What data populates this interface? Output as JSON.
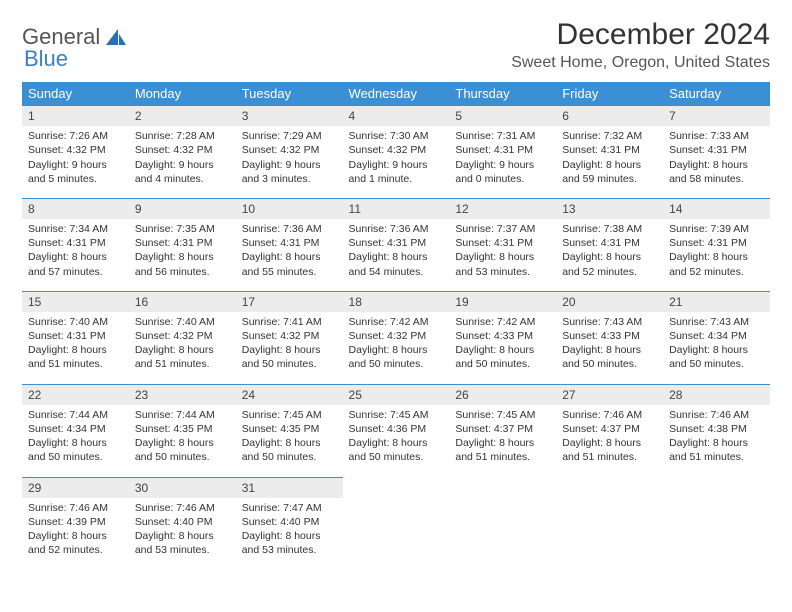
{
  "logo": {
    "text_a": "General",
    "text_b": "Blue"
  },
  "title": "December 2024",
  "location": "Sweet Home, Oregon, United States",
  "colors": {
    "header_bg": "#3b8fd4",
    "header_text": "#ffffff",
    "daynum_bg": "#ececec",
    "daynum_border": "#3b8fd4",
    "body_text": "#333333",
    "background": "#ffffff"
  },
  "day_headers": [
    "Sunday",
    "Monday",
    "Tuesday",
    "Wednesday",
    "Thursday",
    "Friday",
    "Saturday"
  ],
  "weeks": [
    [
      {
        "n": "1",
        "sr": "Sunrise: 7:26 AM",
        "ss": "Sunset: 4:32 PM",
        "d1": "Daylight: 9 hours",
        "d2": "and 5 minutes."
      },
      {
        "n": "2",
        "sr": "Sunrise: 7:28 AM",
        "ss": "Sunset: 4:32 PM",
        "d1": "Daylight: 9 hours",
        "d2": "and 4 minutes."
      },
      {
        "n": "3",
        "sr": "Sunrise: 7:29 AM",
        "ss": "Sunset: 4:32 PM",
        "d1": "Daylight: 9 hours",
        "d2": "and 3 minutes."
      },
      {
        "n": "4",
        "sr": "Sunrise: 7:30 AM",
        "ss": "Sunset: 4:32 PM",
        "d1": "Daylight: 9 hours",
        "d2": "and 1 minute."
      },
      {
        "n": "5",
        "sr": "Sunrise: 7:31 AM",
        "ss": "Sunset: 4:31 PM",
        "d1": "Daylight: 9 hours",
        "d2": "and 0 minutes."
      },
      {
        "n": "6",
        "sr": "Sunrise: 7:32 AM",
        "ss": "Sunset: 4:31 PM",
        "d1": "Daylight: 8 hours",
        "d2": "and 59 minutes."
      },
      {
        "n": "7",
        "sr": "Sunrise: 7:33 AM",
        "ss": "Sunset: 4:31 PM",
        "d1": "Daylight: 8 hours",
        "d2": "and 58 minutes."
      }
    ],
    [
      {
        "n": "8",
        "sr": "Sunrise: 7:34 AM",
        "ss": "Sunset: 4:31 PM",
        "d1": "Daylight: 8 hours",
        "d2": "and 57 minutes."
      },
      {
        "n": "9",
        "sr": "Sunrise: 7:35 AM",
        "ss": "Sunset: 4:31 PM",
        "d1": "Daylight: 8 hours",
        "d2": "and 56 minutes."
      },
      {
        "n": "10",
        "sr": "Sunrise: 7:36 AM",
        "ss": "Sunset: 4:31 PM",
        "d1": "Daylight: 8 hours",
        "d2": "and 55 minutes."
      },
      {
        "n": "11",
        "sr": "Sunrise: 7:36 AM",
        "ss": "Sunset: 4:31 PM",
        "d1": "Daylight: 8 hours",
        "d2": "and 54 minutes."
      },
      {
        "n": "12",
        "sr": "Sunrise: 7:37 AM",
        "ss": "Sunset: 4:31 PM",
        "d1": "Daylight: 8 hours",
        "d2": "and 53 minutes."
      },
      {
        "n": "13",
        "sr": "Sunrise: 7:38 AM",
        "ss": "Sunset: 4:31 PM",
        "d1": "Daylight: 8 hours",
        "d2": "and 52 minutes."
      },
      {
        "n": "14",
        "sr": "Sunrise: 7:39 AM",
        "ss": "Sunset: 4:31 PM",
        "d1": "Daylight: 8 hours",
        "d2": "and 52 minutes."
      }
    ],
    [
      {
        "n": "15",
        "sr": "Sunrise: 7:40 AM",
        "ss": "Sunset: 4:31 PM",
        "d1": "Daylight: 8 hours",
        "d2": "and 51 minutes."
      },
      {
        "n": "16",
        "sr": "Sunrise: 7:40 AM",
        "ss": "Sunset: 4:32 PM",
        "d1": "Daylight: 8 hours",
        "d2": "and 51 minutes."
      },
      {
        "n": "17",
        "sr": "Sunrise: 7:41 AM",
        "ss": "Sunset: 4:32 PM",
        "d1": "Daylight: 8 hours",
        "d2": "and 50 minutes."
      },
      {
        "n": "18",
        "sr": "Sunrise: 7:42 AM",
        "ss": "Sunset: 4:32 PM",
        "d1": "Daylight: 8 hours",
        "d2": "and 50 minutes."
      },
      {
        "n": "19",
        "sr": "Sunrise: 7:42 AM",
        "ss": "Sunset: 4:33 PM",
        "d1": "Daylight: 8 hours",
        "d2": "and 50 minutes."
      },
      {
        "n": "20",
        "sr": "Sunrise: 7:43 AM",
        "ss": "Sunset: 4:33 PM",
        "d1": "Daylight: 8 hours",
        "d2": "and 50 minutes."
      },
      {
        "n": "21",
        "sr": "Sunrise: 7:43 AM",
        "ss": "Sunset: 4:34 PM",
        "d1": "Daylight: 8 hours",
        "d2": "and 50 minutes."
      }
    ],
    [
      {
        "n": "22",
        "sr": "Sunrise: 7:44 AM",
        "ss": "Sunset: 4:34 PM",
        "d1": "Daylight: 8 hours",
        "d2": "and 50 minutes."
      },
      {
        "n": "23",
        "sr": "Sunrise: 7:44 AM",
        "ss": "Sunset: 4:35 PM",
        "d1": "Daylight: 8 hours",
        "d2": "and 50 minutes."
      },
      {
        "n": "24",
        "sr": "Sunrise: 7:45 AM",
        "ss": "Sunset: 4:35 PM",
        "d1": "Daylight: 8 hours",
        "d2": "and 50 minutes."
      },
      {
        "n": "25",
        "sr": "Sunrise: 7:45 AM",
        "ss": "Sunset: 4:36 PM",
        "d1": "Daylight: 8 hours",
        "d2": "and 50 minutes."
      },
      {
        "n": "26",
        "sr": "Sunrise: 7:45 AM",
        "ss": "Sunset: 4:37 PM",
        "d1": "Daylight: 8 hours",
        "d2": "and 51 minutes."
      },
      {
        "n": "27",
        "sr": "Sunrise: 7:46 AM",
        "ss": "Sunset: 4:37 PM",
        "d1": "Daylight: 8 hours",
        "d2": "and 51 minutes."
      },
      {
        "n": "28",
        "sr": "Sunrise: 7:46 AM",
        "ss": "Sunset: 4:38 PM",
        "d1": "Daylight: 8 hours",
        "d2": "and 51 minutes."
      }
    ],
    [
      {
        "n": "29",
        "sr": "Sunrise: 7:46 AM",
        "ss": "Sunset: 4:39 PM",
        "d1": "Daylight: 8 hours",
        "d2": "and 52 minutes."
      },
      {
        "n": "30",
        "sr": "Sunrise: 7:46 AM",
        "ss": "Sunset: 4:40 PM",
        "d1": "Daylight: 8 hours",
        "d2": "and 53 minutes."
      },
      {
        "n": "31",
        "sr": "Sunrise: 7:47 AM",
        "ss": "Sunset: 4:40 PM",
        "d1": "Daylight: 8 hours",
        "d2": "and 53 minutes."
      },
      null,
      null,
      null,
      null
    ]
  ]
}
